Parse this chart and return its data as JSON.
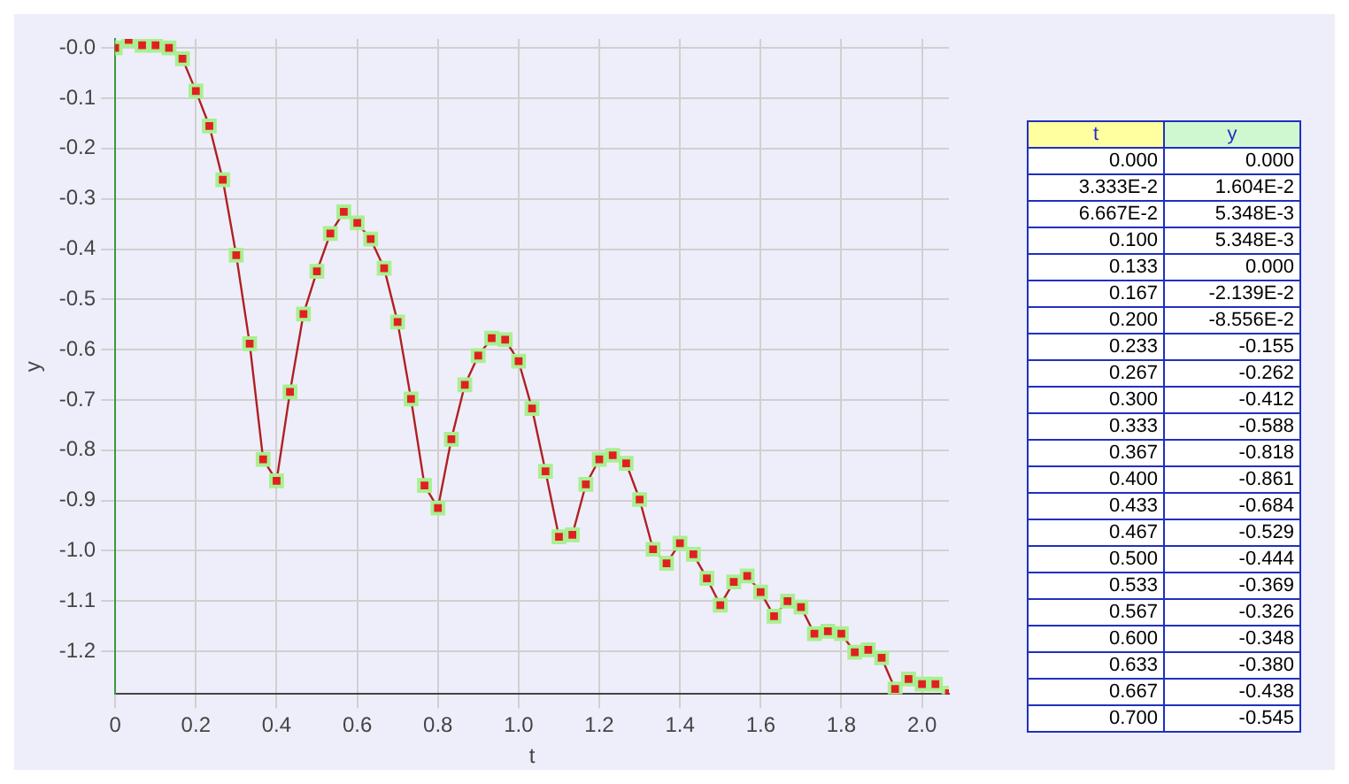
{
  "chart_data": [
    {
      "type": "line",
      "xlabel": "t",
      "ylabel": "y",
      "x": [
        0,
        0.0333,
        0.0667,
        0.1,
        0.1333,
        0.1667,
        0.2,
        0.2333,
        0.2667,
        0.3,
        0.3333,
        0.3667,
        0.4,
        0.4333,
        0.4667,
        0.5,
        0.5333,
        0.5667,
        0.6,
        0.6333,
        0.6667,
        0.7,
        0.7333,
        0.7667,
        0.8,
        0.8333,
        0.8667,
        0.9,
        0.9333,
        0.9667,
        1.0,
        1.0333,
        1.0667,
        1.1,
        1.1333,
        1.1667,
        1.2,
        1.2333,
        1.2667,
        1.3,
        1.3333,
        1.3667,
        1.4,
        1.4333,
        1.4667,
        1.5,
        1.5333,
        1.5667,
        1.6,
        1.6333,
        1.6667,
        1.7,
        1.7333,
        1.7667,
        1.8,
        1.8333,
        1.8667,
        1.9,
        1.9333,
        1.9667,
        2.0,
        2.0333,
        2.0667
      ],
      "series": [
        {
          "color": "#e02020",
          "values": [
            0.0,
            0.01604,
            0.005348,
            0.005348,
            0.0,
            -0.02139,
            -0.08556,
            -0.155,
            -0.262,
            -0.412,
            -0.588,
            -0.818,
            -0.861,
            -0.684,
            -0.529,
            -0.444,
            -0.369,
            -0.326,
            -0.348,
            -0.38,
            -0.438,
            -0.545,
            -0.698,
            -0.87,
            -0.915,
            -0.778,
            -0.67,
            -0.612,
            -0.577,
            -0.58,
            -0.623,
            -0.717,
            -0.842,
            -0.972,
            -0.968,
            -0.868,
            -0.818,
            -0.81,
            -0.826,
            -0.898,
            -0.997,
            -1.025,
            -0.985,
            -1.007,
            -1.055,
            -1.108,
            -1.062,
            -1.05,
            -1.082,
            -1.13,
            -1.1,
            -1.112,
            -1.165,
            -1.16,
            -1.165,
            -1.202,
            -1.197,
            -1.213,
            -1.275,
            -1.255,
            -1.265,
            -1.265,
            -1.283
          ]
        }
      ],
      "xlim": [
        0,
        2.0667
      ],
      "xticks": [
        0,
        0.2,
        0.4,
        0.6,
        0.8,
        {
          "value": 1,
          "label": "1.0"
        },
        1.2,
        1.4,
        1.6,
        1.8,
        {
          "value": 2,
          "label": "2.0"
        }
      ],
      "ylim": [
        -1.285,
        0.018
      ],
      "yticks": [
        {
          "value": 0,
          "label": "-0.0"
        },
        -0.1,
        -0.2,
        -0.3,
        -0.4,
        -0.5,
        -0.6,
        -0.7,
        -0.8,
        -0.9,
        {
          "value": -1,
          "label": "-1.0"
        },
        -1.1,
        -1.2
      ],
      "grid": true,
      "legend": false,
      "marker": "square",
      "line_style": "solid"
    },
    {
      "type": "other",
      "annotations": [
        "t",
        "y",
        "0.000",
        "0.000",
        "3.333E-2",
        "1.604E-2",
        "6.667E-2",
        "5.348E-3",
        "0.100",
        "5.348E-3",
        "0.133",
        "0.000",
        "0.167",
        "-2.139E-2",
        "0.200",
        "-8.556E-2",
        "0.233",
        "-0.155",
        "0.267",
        "-0.262",
        "0.300",
        "-0.412",
        "0.333",
        "-0.588",
        "0.367",
        "-0.818",
        "0.400",
        "-0.861",
        "0.433",
        "-0.684",
        "0.467",
        "-0.529",
        "0.500",
        "-0.444",
        "0.533",
        "-0.369",
        "0.567",
        "-0.326",
        "0.600",
        "-0.348",
        "0.633",
        "-0.380",
        "0.667",
        "-0.438",
        "0.700",
        "-0.545"
      ]
    }
  ]
}
